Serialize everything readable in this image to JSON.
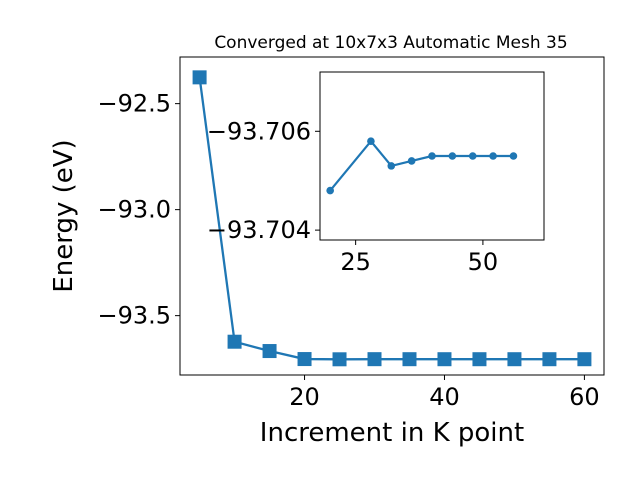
{
  "chart_data": [
    {
      "type": "line",
      "title": "Converged at 10x7x3 Automatic Mesh 35",
      "xlabel": "Increment in K point",
      "ylabel": "Energy (eV)",
      "xlim": [
        2.2,
        62.8
      ],
      "ylim": [
        -93.78,
        -92.28
      ],
      "x_ticks": [
        20,
        40,
        60
      ],
      "y_ticks": [
        -92.5,
        -93.0,
        -93.5
      ],
      "x_tick_labels": [
        "20",
        "40",
        "60"
      ],
      "y_tick_labels": [
        "−92.5",
        "−93.0",
        "−93.5"
      ],
      "grid": false,
      "legend": "none",
      "series": [
        {
          "marker": "square",
          "color": "#1f77b4",
          "x": [
            5,
            10,
            15,
            20,
            25,
            30,
            35,
            40,
            45,
            50,
            55,
            60
          ],
          "y": [
            -92.376,
            -93.623,
            -93.667,
            -93.7048,
            -93.7059,
            -93.7053,
            -93.7054,
            -93.7055,
            -93.7055,
            -93.7055,
            -93.7055,
            -93.7055
          ]
        }
      ]
    },
    {
      "type": "line",
      "inset": true,
      "xlim": [
        18,
        62
      ],
      "ylim": [
        -93.7038,
        -93.7072
      ],
      "x_ticks": [
        25,
        50
      ],
      "y_ticks": [
        -93.706,
        -93.704
      ],
      "x_tick_labels": [
        "25",
        "50"
      ],
      "y_tick_labels": [
        "−93.706",
        "−93.704"
      ],
      "grid": false,
      "series": [
        {
          "marker": "circle",
          "color": "#1f77b4",
          "x": [
            20,
            28,
            32,
            36,
            40,
            44,
            48,
            52,
            56
          ],
          "y": [
            -93.7048,
            -93.7058,
            -93.7053,
            -93.7054,
            -93.7055,
            -93.7055,
            -93.7055,
            -93.7055,
            -93.7055
          ]
        }
      ]
    }
  ]
}
